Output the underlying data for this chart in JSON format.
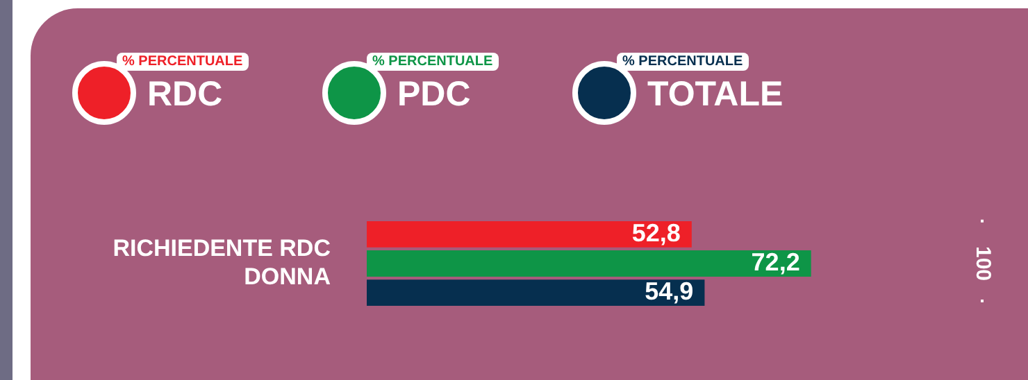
{
  "chart_data": {
    "type": "bar",
    "orientation": "horizontal",
    "legend_title": "% PERCENTUALE",
    "legend": "top left",
    "categories": [
      "RICHIEDENTE RDC DONNA"
    ],
    "series": [
      {
        "name": "RDC",
        "color": "#ee2028",
        "values": [
          52.8
        ],
        "value_labels": [
          "52,8"
        ]
      },
      {
        "name": "PDC",
        "color": "#0e9547",
        "values": [
          72.2
        ],
        "value_labels": [
          "72,2"
        ]
      },
      {
        "name": "TOTALE",
        "color": "#062f4f",
        "values": [
          54.9
        ],
        "value_labels": [
          "54,9"
        ]
      }
    ],
    "ref_lines": [
      {
        "axis": "x",
        "value": 100,
        "label": "100",
        "line_style": "dotted",
        "color": "#ffffff"
      }
    ]
  }
}
